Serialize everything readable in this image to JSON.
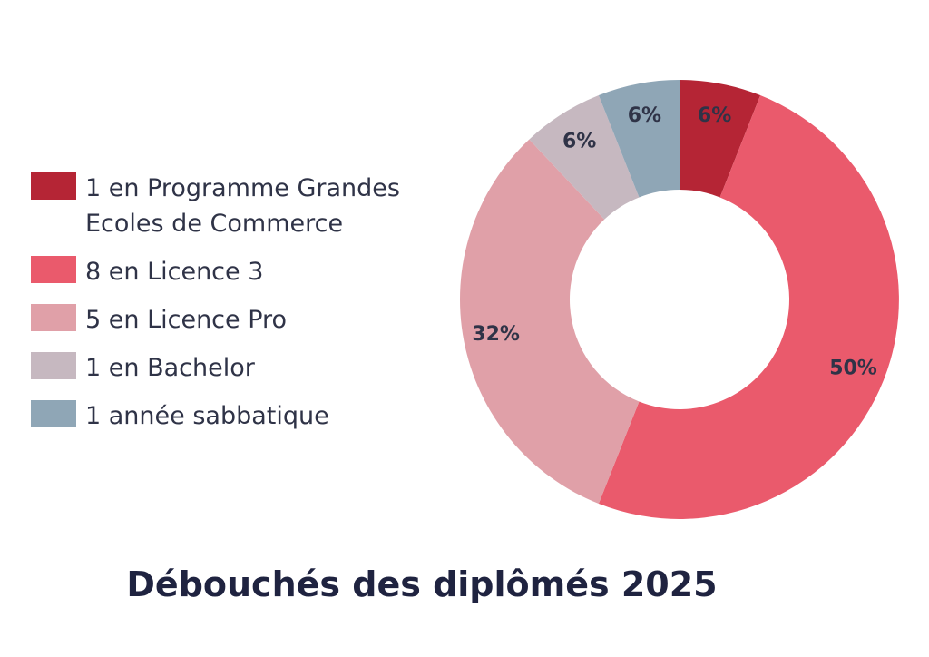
{
  "chart_data": {
    "type": "pie",
    "title": "Débouchés des diplômés 2025",
    "donut": true,
    "legend_position": "left",
    "slices": [
      {
        "label": "1 en Programme Grandes Ecoles de Commerce",
        "value": 6,
        "display": "6%",
        "color": "#b52535"
      },
      {
        "label": "8 en Licence 3",
        "value": 50,
        "display": "50%",
        "color": "#ea5a6c"
      },
      {
        "label": "5 en Licence Pro",
        "value": 32,
        "display": "32%",
        "color": "#e0a0a8"
      },
      {
        "label": "1 en Bachelor",
        "value": 6,
        "display": "6%",
        "color": "#c6b8c0"
      },
      {
        "label": "1 année sabbatique",
        "value": 6,
        "display": "6%",
        "color": "#8fa6b6"
      }
    ]
  }
}
